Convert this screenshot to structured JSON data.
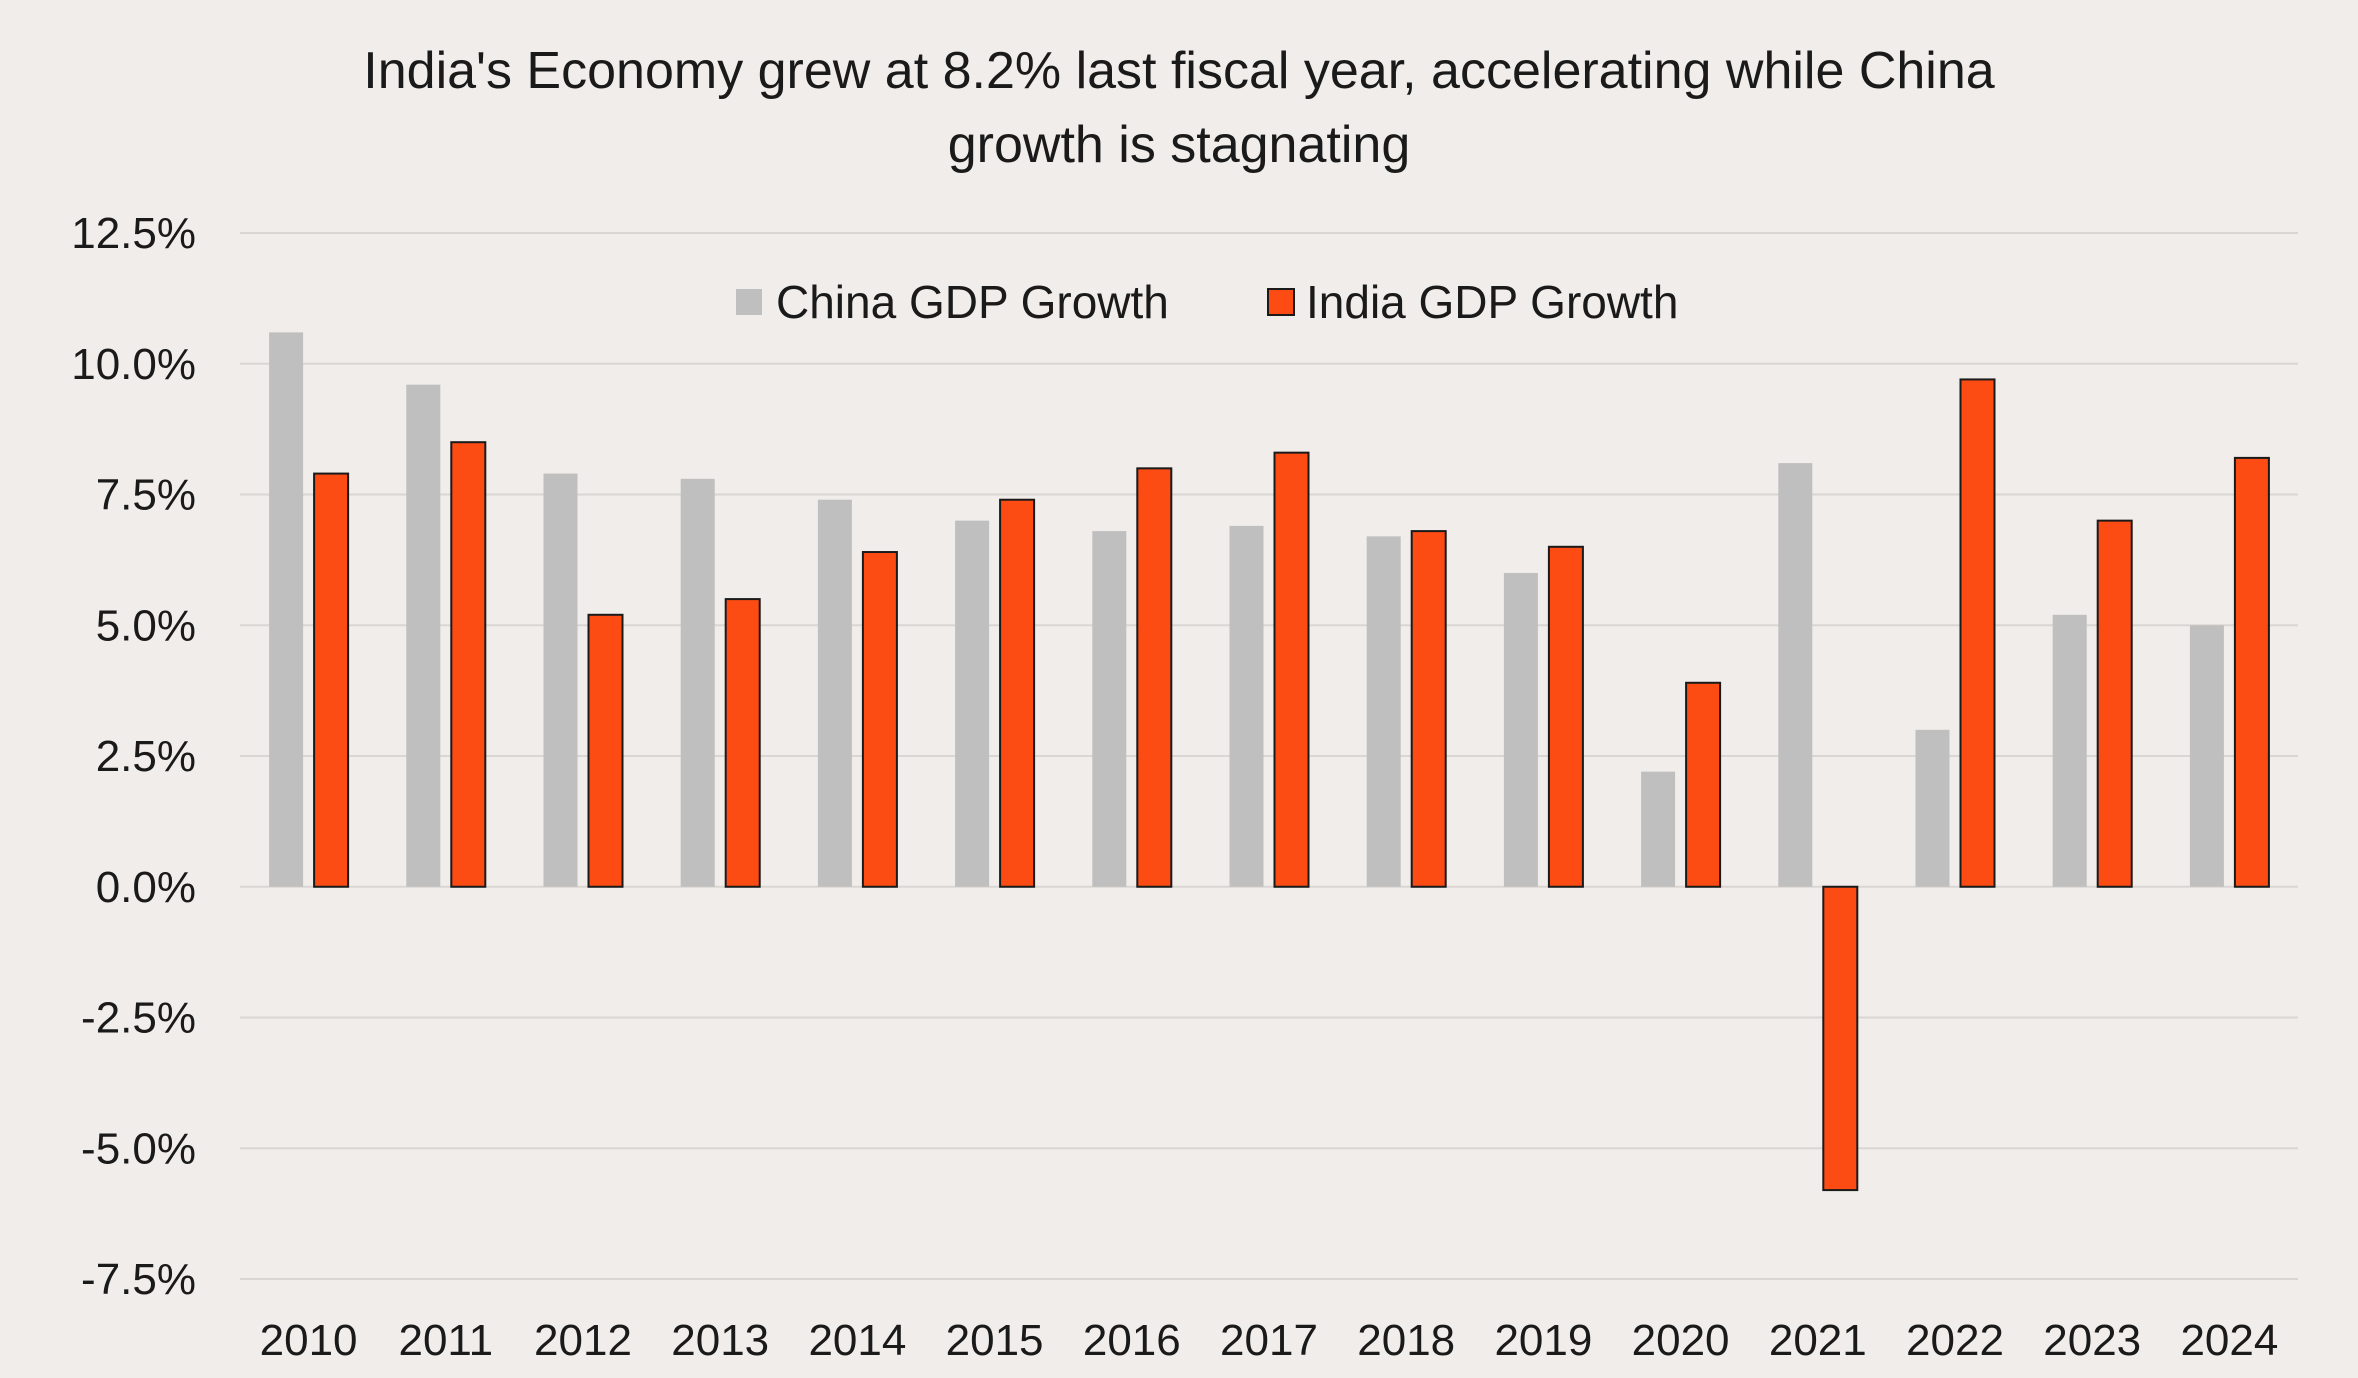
{
  "chart_data": {
    "type": "bar",
    "title": "India's Economy grew at 8.2% last fiscal year, accelerating while China growth is stagnating",
    "title_lines": [
      "India's Economy grew at 8.2% last fiscal year, accelerating while China",
      "growth is stagnating"
    ],
    "xlabel": "",
    "ylabel": "",
    "ylim": [
      -7.5,
      12.5
    ],
    "y_ticks": [
      12.5,
      10.0,
      7.5,
      5.0,
      2.5,
      0.0,
      -2.5,
      -5.0,
      -7.5
    ],
    "y_tick_labels": [
      "12.5%",
      "10.0%",
      "7.5%",
      "5.0%",
      "2.5%",
      "0.0%",
      "-2.5%",
      "-5.0%",
      "-7.5%"
    ],
    "grid": true,
    "legend_position": "top-center",
    "categories": [
      "2010",
      "2011",
      "2012",
      "2013",
      "2014",
      "2015",
      "2016",
      "2017",
      "2018",
      "2019",
      "2020",
      "2021",
      "2022",
      "2023",
      "2024"
    ],
    "series": [
      {
        "name": "China GDP Growth",
        "color": "#bfbfbf",
        "outline": false,
        "values": [
          10.6,
          9.6,
          7.9,
          7.8,
          7.4,
          7.0,
          6.8,
          6.9,
          6.7,
          6.0,
          2.2,
          8.1,
          3.0,
          5.2,
          5.0
        ]
      },
      {
        "name": "India GDP Growth",
        "color": "#fc4c14",
        "outline": true,
        "values": [
          7.9,
          8.5,
          5.2,
          5.5,
          6.4,
          7.4,
          8.0,
          8.3,
          6.8,
          6.5,
          3.9,
          -5.8,
          9.7,
          7.0,
          8.2
        ]
      }
    ]
  },
  "colors": {
    "background": "#f0edea",
    "grid": "#d9d6d3",
    "text": "#1a1a1a",
    "bar_outline": "#1a1a1a"
  }
}
